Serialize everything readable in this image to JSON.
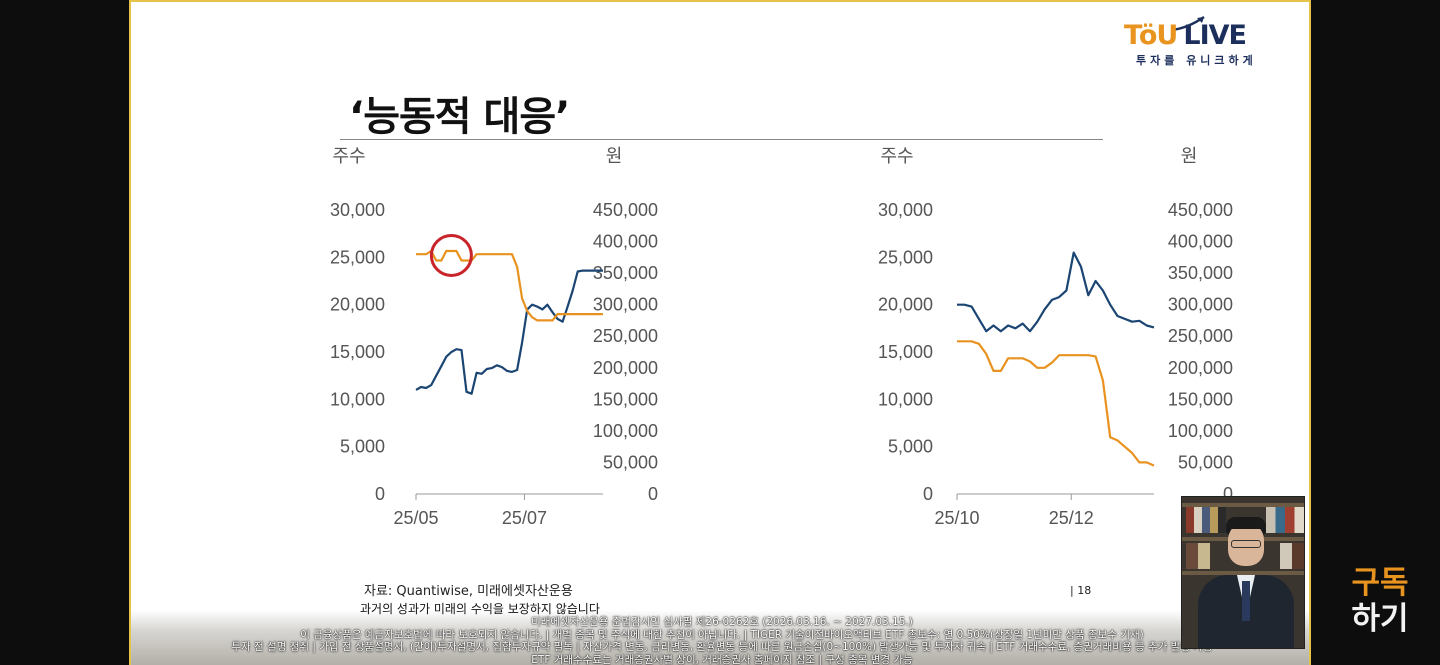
{
  "logo": {
    "brand_tou": "TöU",
    "brand_live": "LIVE",
    "tagline": "투자를 유니크하게"
  },
  "slide": {
    "title": "‘능동적 대응’",
    "source": "자료: Quantiwise, 미래에셋자산운용",
    "page_number": "| 18",
    "past_performance_note": "과거의 성과가 미래의 수익을 보장하지 않습니다"
  },
  "captions": {
    "line1": "미래에셋자산운용 준법감시인 심사필 제26-0262호 (2026.03.16. ~ 2027.03.15.)",
    "line2": "이 금융상품은 예금자보호법에 따라 보호되지 않습니다. | 개별 종목 및 주식에 대한 추천이 아닙니다. | TIGER 기술이전바이오액티브 ETF 총보수: 연 0.50%(상장일 1년미만 상품 총보수 기재)",
    "line3": "투자 전 설명 청취 | 가입 전 상품설명서, (간이)투자설명서, 집합투자규약 필독 | 자산가격 변동, 금리변동, 환율변동 등에 따른 원금손실(0~100%) 발생가능 및 투자자 귀속 | ETF 거래수수료, 증권거래비용 등 추가 발생 가능",
    "line4": "ETF 거래수수료는 거래증권사별 상이, 거래증권사 홈페이지 참조 | 구성 종목 변경 가능"
  },
  "subscribe": {
    "line1": "구독",
    "line2": "하기"
  },
  "colors": {
    "shares_line": "#1b4572",
    "price_line": "#e8921f",
    "highlight_circle": "#c8242a"
  },
  "chart_data": [
    {
      "type": "line",
      "title": "",
      "left_axis_label": "주수",
      "right_axis_label": "원",
      "left_ticks": [
        "30,000",
        "25,000",
        "20,000",
        "15,000",
        "10,000",
        "5,000",
        "0"
      ],
      "right_ticks": [
        "450,000",
        "400,000",
        "350,000",
        "300,000",
        "250,000",
        "200,000",
        "150,000",
        "100,000",
        "50,000",
        "0"
      ],
      "left_ylim": [
        0,
        30000
      ],
      "right_ylim": [
        0,
        450000
      ],
      "x_ticks": [
        "25/05",
        "25/07"
      ],
      "x": [
        0,
        2,
        4,
        6,
        8,
        10,
        12,
        14,
        16,
        18,
        20,
        22,
        24,
        26,
        28,
        30,
        32,
        34,
        36,
        38,
        40,
        42,
        44,
        46,
        48,
        50,
        52,
        54,
        56,
        58,
        60,
        62,
        64,
        66,
        68,
        70,
        72,
        74
      ],
      "series": [
        {
          "name": "주수",
          "axis": "left",
          "values": [
            11000,
            11300,
            11200,
            11500,
            12500,
            13500,
            14500,
            15000,
            15300,
            15200,
            10800,
            10600,
            12800,
            12700,
            13200,
            13300,
            13600,
            13400,
            13000,
            12900,
            13100,
            16000,
            19500,
            20000,
            19800,
            19500,
            20000,
            19200,
            18500,
            18200,
            19800,
            21500,
            23500,
            23600,
            23600,
            23600,
            23600,
            23600
          ]
        },
        {
          "name": "원",
          "axis": "right",
          "values": [
            380000,
            380000,
            380000,
            385000,
            370000,
            370000,
            385000,
            385000,
            385000,
            370000,
            370000,
            370000,
            380000,
            380000,
            380000,
            380000,
            380000,
            380000,
            380000,
            380000,
            360000,
            310000,
            290000,
            280000,
            275000,
            275000,
            275000,
            275000,
            285000,
            285000,
            285000,
            285000,
            285000,
            285000,
            285000,
            285000,
            285000,
            285000
          ]
        }
      ],
      "annotation": "highlight-circle"
    },
    {
      "type": "line",
      "title": "",
      "left_axis_label": "주수",
      "right_axis_label": "원",
      "left_ticks": [
        "30,000",
        "25,000",
        "20,000",
        "15,000",
        "10,000",
        "5,000",
        "0"
      ],
      "right_ticks": [
        "450,000",
        "400,000",
        "350,000",
        "300,000",
        "250,000",
        "200,000",
        "150,000",
        "100,000",
        "50,000",
        "0"
      ],
      "left_ylim": [
        0,
        30000
      ],
      "right_ylim": [
        0,
        450000
      ],
      "x_ticks": [
        "25/10",
        "25/12"
      ],
      "x": [
        0,
        3,
        6,
        9,
        12,
        15,
        18,
        21,
        24,
        27,
        30,
        33,
        36,
        39,
        42,
        45,
        48,
        51,
        54,
        57,
        60,
        63,
        66,
        69,
        72,
        75,
        78,
        81
      ],
      "series": [
        {
          "name": "주수",
          "axis": "left",
          "values": [
            20000,
            20000,
            19800,
            18500,
            17200,
            17800,
            17200,
            17800,
            17500,
            18000,
            17200,
            18200,
            19500,
            20500,
            20800,
            21500,
            25500,
            24000,
            21000,
            22500,
            21500,
            20000,
            18800,
            18500,
            18200,
            18300,
            17800,
            17600
          ]
        },
        {
          "name": "원",
          "axis": "right",
          "values": [
            242000,
            242000,
            242000,
            238000,
            222000,
            195000,
            195000,
            215000,
            215000,
            215000,
            210000,
            200000,
            200000,
            208000,
            220000,
            220000,
            220000,
            220000,
            220000,
            218000,
            180000,
            90000,
            85000,
            75000,
            65000,
            50000,
            50000,
            45000
          ]
        }
      ]
    }
  ]
}
